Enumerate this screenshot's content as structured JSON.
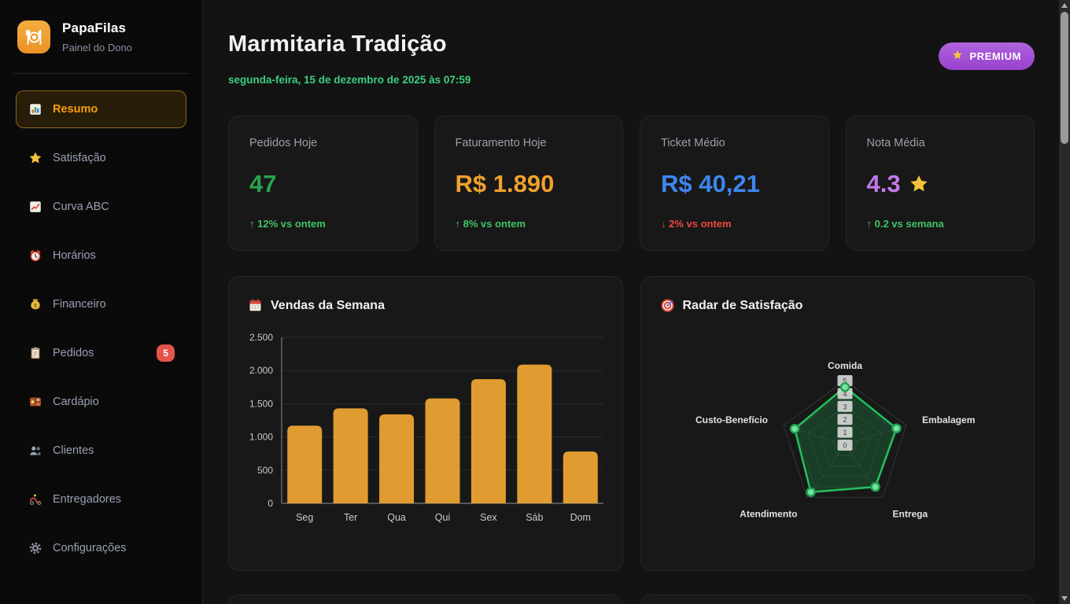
{
  "brand": {
    "name": "PapaFilas",
    "subtitle": "Painel do Dono",
    "logo_icon": "fork-knife-plate-icon",
    "logo_color": "#f0a137"
  },
  "sidebar": {
    "items": [
      {
        "icon": "bar-chart",
        "label": "Resumo",
        "active": true
      },
      {
        "icon": "star",
        "label": "Satisfação",
        "active": false
      },
      {
        "icon": "chart-increasing",
        "label": "Curva ABC",
        "active": false
      },
      {
        "icon": "alarm-clock",
        "label": "Horários",
        "active": false
      },
      {
        "icon": "money-bag",
        "label": "Financeiro",
        "active": false
      },
      {
        "icon": "clipboard",
        "label": "Pedidos",
        "active": false,
        "badge": "5"
      },
      {
        "icon": "bento-box",
        "label": "Cardápio",
        "active": false
      },
      {
        "icon": "people",
        "label": "Clientes",
        "active": false
      },
      {
        "icon": "scooter",
        "label": "Entregadores",
        "active": false
      },
      {
        "icon": "gear",
        "label": "Configurações",
        "active": false
      }
    ]
  },
  "header": {
    "title": "Marmitaria Tradição",
    "date": "segunda-feira, 15 de dezembro de 2025 às 07:59",
    "premium": {
      "label": "PREMIUM",
      "icon": "star",
      "bg_color": "#a55cd9"
    }
  },
  "stats": [
    {
      "label": "Pedidos Hoje",
      "value": "47",
      "value_color": "#2aa24d",
      "delta": "↑ 12% vs ontem",
      "delta_color": "#41c366"
    },
    {
      "label": "Faturamento Hoje",
      "value": "R$ 1.890",
      "value_color": "#f0a12e",
      "delta": "↑ 8% vs ontem",
      "delta_color": "#41c366"
    },
    {
      "label": "Ticket Médio",
      "value": "R$ 40,21",
      "value_color": "#3e86f0",
      "delta": "↓ 2% vs ontem",
      "delta_color": "#e8483f"
    },
    {
      "label": "Nota Média",
      "value": "4.3",
      "value_icon": "star",
      "value_color": "#c478ea",
      "delta": "↑ 0.2 vs semana",
      "delta_color": "#41c366"
    }
  ],
  "chart_data": [
    {
      "type": "bar",
      "title": "Vendas da Semana",
      "icon": "calendar",
      "categories": [
        "Seg",
        "Ter",
        "Qua",
        "Qui",
        "Sex",
        "Sáb",
        "Dom"
      ],
      "values": [
        1170,
        1430,
        1340,
        1580,
        1870,
        2090,
        780
      ],
      "ylim": [
        0,
        2500
      ],
      "yticks": [
        {
          "v": 0,
          "label": "0"
        },
        {
          "v": 500,
          "label": "500"
        },
        {
          "v": 1000,
          "label": "1.000"
        },
        {
          "v": 1500,
          "label": "1.500"
        },
        {
          "v": 2000,
          "label": "2.000"
        },
        {
          "v": 2500,
          "label": "2.500"
        }
      ],
      "bar_color": "#e09c30",
      "grid": true,
      "legend": "none"
    },
    {
      "type": "radar",
      "title": "Radar de Satisfação",
      "icon": "target",
      "categories": [
        "Comida",
        "Embalagem",
        "Entrega",
        "Atendimento",
        "Custo-Benefício"
      ],
      "values": [
        4.5,
        4.2,
        4.0,
        4.5,
        4.1
      ],
      "scale_max": 5,
      "tick_labels": [
        "0",
        "1",
        "2",
        "3",
        "4",
        "5"
      ],
      "line_color": "#25c05e",
      "fill_color": "rgba(34,197,94,0.22)",
      "legend": "none"
    }
  ]
}
